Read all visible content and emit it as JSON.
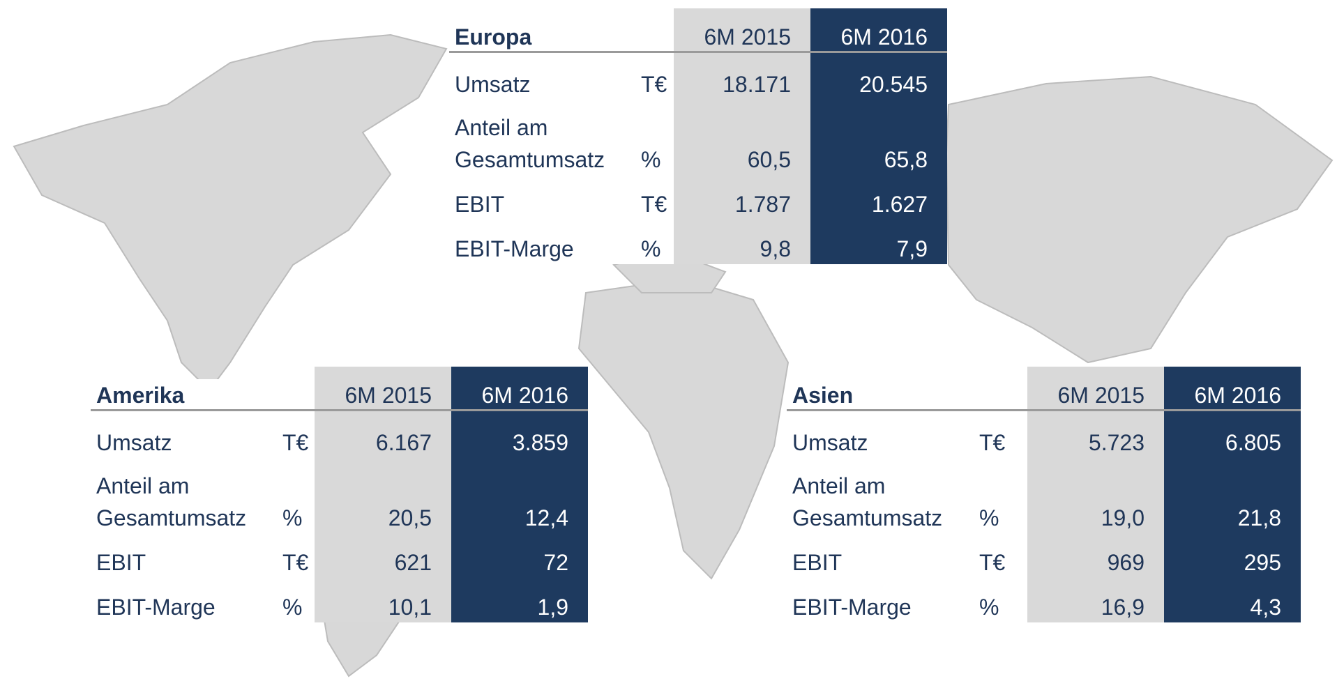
{
  "columns": [
    "6M 2015",
    "6M 2016"
  ],
  "tables": [
    {
      "title": "Europa",
      "rows": [
        [
          "Umsatz",
          "T€",
          "18.171",
          "20.545"
        ],
        [
          "Anteil am Gesamtumsatz",
          "%",
          "60,5",
          "65,8"
        ],
        [
          "EBIT",
          "T€",
          "1.787",
          "1.627"
        ],
        [
          "EBIT-Marge",
          "%",
          "9,8",
          "7,9"
        ]
      ]
    },
    {
      "title": "Amerika",
      "rows": [
        [
          "Umsatz",
          "T€",
          "6.167",
          "3.859"
        ],
        [
          "Anteil am Gesamtumsatz",
          "%",
          "20,5",
          "12,4"
        ],
        [
          "EBIT",
          "T€",
          "621",
          "72"
        ],
        [
          "EBIT-Marge",
          "%",
          "10,1",
          "1,9"
        ]
      ]
    },
    {
      "title": "Asien",
      "rows": [
        [
          "Umsatz",
          "T€",
          "5.723",
          "6.805"
        ],
        [
          "Anteil am Gesamtumsatz",
          "%",
          "19,0",
          "21,8"
        ],
        [
          "EBIT",
          "T€",
          "969",
          "295"
        ],
        [
          "EBIT-Marge",
          "%",
          "16,9",
          "4,3"
        ]
      ]
    }
  ]
}
